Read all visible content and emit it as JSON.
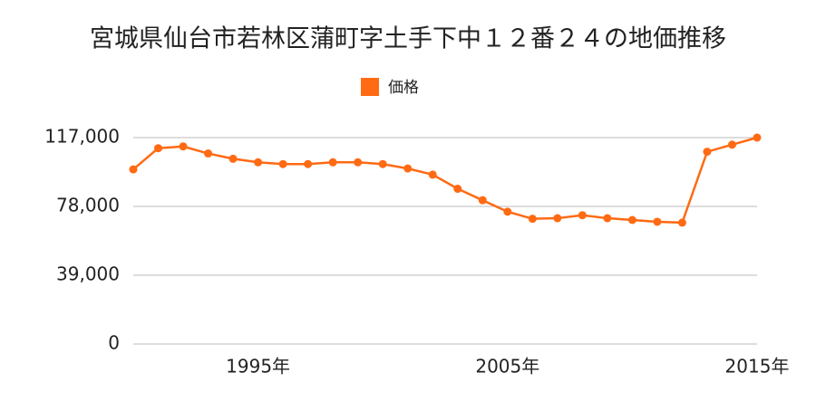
{
  "chart_data": {
    "type": "line",
    "title": "宮城県仙台市若林区蒲町字土手下中１２番２４の地価推移",
    "x": [
      1990,
      1991,
      1992,
      1993,
      1994,
      1995,
      1996,
      1997,
      1998,
      1999,
      2000,
      2001,
      2002,
      2003,
      2004,
      2005,
      2006,
      2007,
      2008,
      2009,
      2010,
      2011,
      2012,
      2013,
      2014,
      2015
    ],
    "series": [
      {
        "name": "価格",
        "color": "#ff6a13",
        "values": [
          99000,
          111000,
          112000,
          108000,
          105000,
          103000,
          102000,
          102000,
          103000,
          103000,
          102000,
          99500,
          96000,
          88000,
          81500,
          75000,
          71000,
          71300,
          73000,
          71300,
          70300,
          69300,
          68800,
          109000,
          113000,
          117000
        ]
      }
    ],
    "xlim": [
      1990,
      2015
    ],
    "xticks": [
      {
        "value": 1995,
        "label": "1995年"
      },
      {
        "value": 2005,
        "label": "2005年"
      },
      {
        "value": 2015,
        "label": "2015年"
      }
    ],
    "ylim": [
      0,
      117000
    ],
    "yticks": [
      0,
      {
        "value": 39000,
        "label": "39,000"
      },
      {
        "value": 78000,
        "label": "78,000"
      },
      {
        "value": 117000,
        "label": "117,000"
      }
    ],
    "grid": true,
    "legend": "top"
  }
}
